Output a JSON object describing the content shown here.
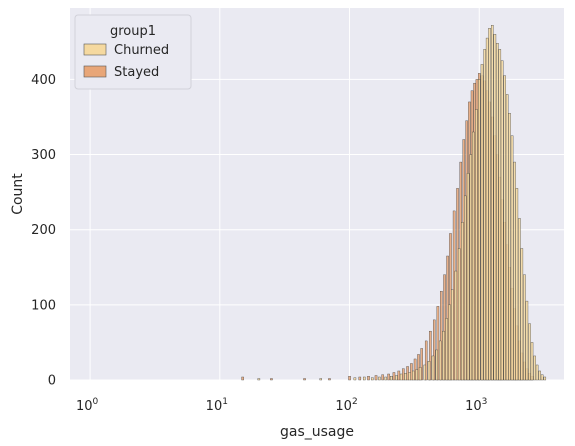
{
  "chart_data": {
    "type": "bar",
    "subtype": "histogram",
    "xscale": "log",
    "xlabel": "gas_usage",
    "ylabel": "Count",
    "xlim": [
      0.7,
      4500
    ],
    "ylim": [
      0,
      495
    ],
    "xticks": [
      {
        "value": 1,
        "base": "10",
        "exp": "0"
      },
      {
        "value": 10,
        "base": "10",
        "exp": "1"
      },
      {
        "value": 100,
        "base": "10",
        "exp": "2"
      },
      {
        "value": 1000,
        "base": "10",
        "exp": "3"
      }
    ],
    "yticks": [
      0,
      100,
      200,
      300,
      400
    ],
    "grid": true,
    "legend": {
      "title": "group1",
      "position": "top-left"
    },
    "bin_log_width": 0.0165,
    "series": [
      {
        "name": "Churned",
        "color": "#f5d9a0",
        "bins": [
          [
            20,
            2
          ],
          [
            60,
            2
          ],
          [
            110,
            3
          ],
          [
            130,
            4
          ],
          [
            150,
            3
          ],
          [
            170,
            4
          ],
          [
            190,
            4
          ],
          [
            210,
            5
          ],
          [
            230,
            6
          ],
          [
            250,
            8
          ],
          [
            270,
            9
          ],
          [
            290,
            10
          ],
          [
            310,
            12
          ],
          [
            330,
            14
          ],
          [
            350,
            17
          ],
          [
            380,
            20
          ],
          [
            410,
            25
          ],
          [
            440,
            32
          ],
          [
            470,
            40
          ],
          [
            500,
            52
          ],
          [
            530,
            65
          ],
          [
            560,
            82
          ],
          [
            590,
            100
          ],
          [
            620,
            120
          ],
          [
            660,
            145
          ],
          [
            700,
            175
          ],
          [
            740,
            210
          ],
          [
            780,
            245
          ],
          [
            820,
            275
          ],
          [
            860,
            300
          ],
          [
            900,
            330
          ],
          [
            950,
            360
          ],
          [
            1000,
            400
          ],
          [
            1050,
            420
          ],
          [
            1100,
            440
          ],
          [
            1150,
            455
          ],
          [
            1200,
            468
          ],
          [
            1260,
            472
          ],
          [
            1320,
            460
          ],
          [
            1380,
            448
          ],
          [
            1440,
            440
          ],
          [
            1500,
            425
          ],
          [
            1570,
            405
          ],
          [
            1640,
            380
          ],
          [
            1710,
            355
          ],
          [
            1790,
            325
          ],
          [
            1870,
            290
          ],
          [
            1950,
            255
          ],
          [
            2040,
            215
          ],
          [
            2130,
            175
          ],
          [
            2230,
            140
          ],
          [
            2330,
            105
          ],
          [
            2440,
            75
          ],
          [
            2550,
            50
          ],
          [
            2670,
            32
          ],
          [
            2790,
            20
          ],
          [
            2920,
            12
          ],
          [
            3050,
            7
          ],
          [
            3200,
            4
          ]
        ]
      },
      {
        "name": "Stayed",
        "color": "#e8a678",
        "bins": [
          [
            15,
            4
          ],
          [
            25,
            2
          ],
          [
            45,
            2
          ],
          [
            70,
            2
          ],
          [
            100,
            5
          ],
          [
            120,
            4
          ],
          [
            140,
            5
          ],
          [
            160,
            6
          ],
          [
            180,
            7
          ],
          [
            200,
            8
          ],
          [
            220,
            10
          ],
          [
            240,
            12
          ],
          [
            260,
            15
          ],
          [
            280,
            18
          ],
          [
            300,
            22
          ],
          [
            320,
            28
          ],
          [
            340,
            34
          ],
          [
            360,
            42
          ],
          [
            390,
            52
          ],
          [
            420,
            65
          ],
          [
            450,
            80
          ],
          [
            480,
            98
          ],
          [
            510,
            118
          ],
          [
            540,
            140
          ],
          [
            570,
            165
          ],
          [
            600,
            195
          ],
          [
            640,
            225
          ],
          [
            680,
            255
          ],
          [
            720,
            290
          ],
          [
            760,
            320
          ],
          [
            800,
            345
          ],
          [
            840,
            370
          ],
          [
            880,
            385
          ],
          [
            920,
            395
          ],
          [
            960,
            400
          ],
          [
            1000,
            408
          ],
          [
            1050,
            405
          ],
          [
            1100,
            398
          ],
          [
            1150,
            385
          ],
          [
            1200,
            370
          ],
          [
            1260,
            350
          ],
          [
            1320,
            325
          ],
          [
            1380,
            300
          ],
          [
            1440,
            270
          ],
          [
            1500,
            240
          ],
          [
            1570,
            210
          ],
          [
            1640,
            180
          ],
          [
            1710,
            150
          ],
          [
            1790,
            122
          ],
          [
            1870,
            95
          ],
          [
            1950,
            72
          ],
          [
            2040,
            52
          ],
          [
            2130,
            36
          ],
          [
            2230,
            24
          ],
          [
            2330,
            15
          ],
          [
            2440,
            9
          ],
          [
            2550,
            5
          ]
        ]
      }
    ]
  }
}
